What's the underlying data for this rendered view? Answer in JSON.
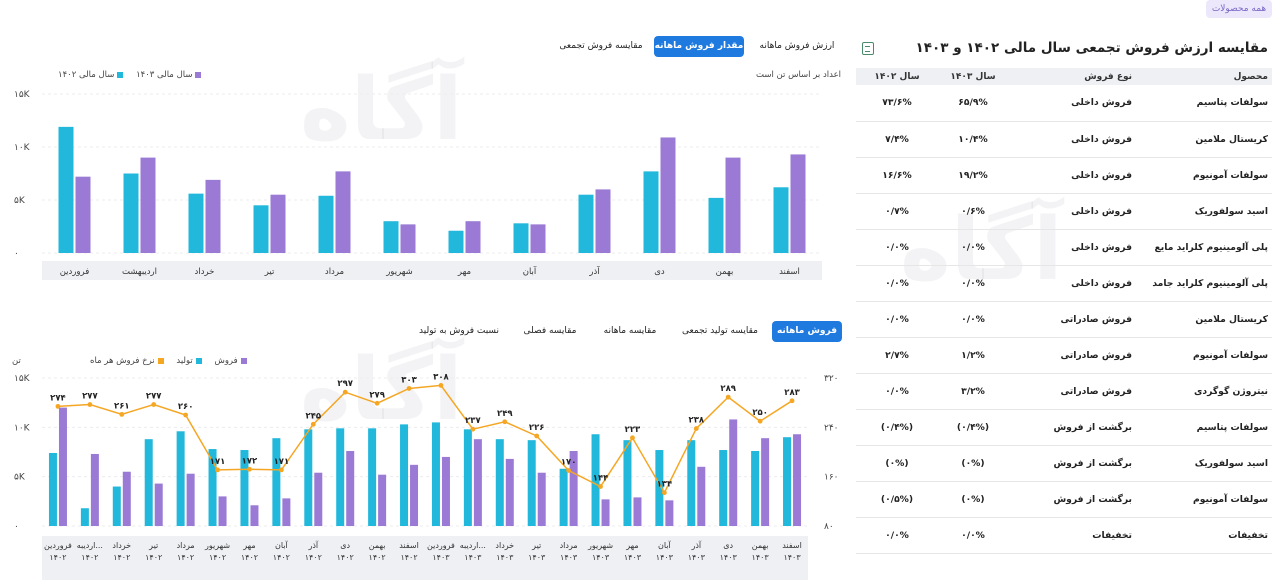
{
  "all_products_button": "همه محصولات",
  "table": {
    "title": "مقایسه ارزش فروش تجمعی سال مالی ۱۴۰۲ و ۱۴۰۳",
    "excel_icon": "excel-export-icon",
    "headers": [
      "محصول",
      "نوع فروش",
      "سال ۱۴۰۳",
      "سال ۱۴۰۲"
    ],
    "rows": [
      [
        "سولفات پتاسیم",
        "فروش داخلی",
        "۶۵/۹%",
        "۷۳/۶%"
      ],
      [
        "کریستال ملامین",
        "فروش داخلی",
        "۱۰/۴%",
        "۷/۴%"
      ],
      [
        "سولفات آمونیوم",
        "فروش داخلی",
        "۱۹/۲%",
        "۱۶/۶%"
      ],
      [
        "اسید سولفوریک",
        "فروش داخلی",
        "۰/۶%",
        "۰/۷%"
      ],
      [
        "پلی آلومینیوم کلراید مایع",
        "فروش داخلی",
        "۰/۰%",
        "۰/۰%"
      ],
      [
        "پلی آلومینیوم کلراید جامد",
        "فروش داخلی",
        "۰/۰%",
        "۰/۰%"
      ],
      [
        "کریستال ملامین",
        "فروش صادراتی",
        "۰/۰%",
        "۰/۰%"
      ],
      [
        "سولفات آمونیوم",
        "فروش صادراتی",
        "۱/۲%",
        "۲/۷%"
      ],
      [
        "نیتروژن گوگردی",
        "فروش صادراتی",
        "۳/۲%",
        "۰/۰%"
      ],
      [
        "سولفات پتاسیم",
        "برگشت از فروش",
        "(۰/۴%)",
        "(۰/۴%)"
      ],
      [
        "اسید سولفوریک",
        "برگشت از فروش",
        "(۰%)",
        "(۰%)"
      ],
      [
        "سولفات آمونیوم",
        "برگشت از فروش",
        "(۰%)",
        "(۰/۵%)"
      ],
      [
        "تخفیفات",
        "تخفیفات",
        "۰/۰%",
        "۰/۰%"
      ]
    ]
  },
  "top_tabs": [
    "مقایسه فروش تجمعی",
    "مقدار فروش ماهانه",
    "ارزش فروش ماهانه"
  ],
  "top_note": "اعداد بر اساس تن است",
  "top_legend": [
    "سال مالی ۱۴۰۳",
    "سال مالی ۱۴۰۲"
  ],
  "bottom_tabs": [
    "فروش ماهانه",
    "مقایسه تولید تجمعی",
    "مقایسه ماهانه",
    "مقایسه فصلی",
    "نسبت فروش به تولید"
  ],
  "bottom_legend": [
    "فروش",
    "تولید",
    "نرخ فروش هر ماه"
  ],
  "bottom_unit": "تن",
  "colors": {
    "production": "#22b8dc",
    "sales": "#9a7ad4",
    "rate": "#f5a623",
    "accent": "#1f7ae0"
  },
  "watermark_text": "آگاه",
  "chart_data": [
    {
      "type": "bar",
      "categories": [
        "اسفند",
        "بهمن",
        "دی",
        "آذر",
        "آبان",
        "مهر",
        "شهریور",
        "مرداد",
        "تیر",
        "خرداد",
        "اردیبهشت",
        "فروردین"
      ],
      "series": [
        {
          "name": "سال مالی ۱۴۰۲",
          "color": "#22b8dc",
          "values": [
            6200,
            5200,
            7700,
            5500,
            2800,
            2100,
            3000,
            5400,
            4500,
            5600,
            7500,
            11900
          ]
        },
        {
          "name": "سال مالی ۱۴۰۳",
          "color": "#9a7ad4",
          "values": [
            9300,
            9000,
            10900,
            6000,
            2700,
            3000,
            2700,
            7700,
            5500,
            6900,
            9000,
            7200
          ]
        }
      ],
      "ylim": [
        0,
        15000
      ],
      "yticks": [
        "۰",
        "۵K",
        "۱۰K",
        "۱۵K"
      ],
      "legend": "top-left"
    },
    {
      "type": "bar+line",
      "categories": [
        [
          "فروردین",
          "۱۴۰۲"
        ],
        [
          "اردیبه...",
          "۱۴۰۲"
        ],
        [
          "خرداد",
          "۱۴۰۲"
        ],
        [
          "تیر",
          "۱۴۰۲"
        ],
        [
          "مرداد",
          "۱۴۰۲"
        ],
        [
          "شهریور",
          "۱۴۰۲"
        ],
        [
          "مهر",
          "۱۴۰۲"
        ],
        [
          "آبان",
          "۱۴۰۲"
        ],
        [
          "آذر",
          "۱۴۰۲"
        ],
        [
          "دی",
          "۱۴۰۲"
        ],
        [
          "بهمن",
          "۱۴۰۲"
        ],
        [
          "اسفند",
          "۱۴۰۲"
        ],
        [
          "فروردین",
          "۱۴۰۳"
        ],
        [
          "اردیبه...",
          "۱۴۰۳"
        ],
        [
          "خرداد",
          "۱۴۰۳"
        ],
        [
          "تیر",
          "۱۴۰۳"
        ],
        [
          "مرداد",
          "۱۴۰۳"
        ],
        [
          "شهریور",
          "۱۴۰۳"
        ],
        [
          "مهر",
          "۱۴۰۳"
        ],
        [
          "آبان",
          "۱۴۰۳"
        ],
        [
          "آذر",
          "۱۴۰۳"
        ],
        [
          "دی",
          "۱۴۰۳"
        ],
        [
          "بهمن",
          "۱۴۰۳"
        ],
        [
          "اسفند",
          "۱۴۰۳"
        ]
      ],
      "series": [
        {
          "name": "تولید",
          "color": "#22b8dc",
          "values": [
            7400,
            1800,
            4000,
            8800,
            9600,
            7800,
            7700,
            8900,
            9800,
            9900,
            9900,
            10300,
            10500,
            9800,
            8800,
            8700,
            5800,
            9300,
            8700,
            7700,
            8700,
            7700,
            7600,
            9000
          ]
        },
        {
          "name": "فروش",
          "color": "#9a7ad4",
          "values": [
            12000,
            7300,
            5500,
            4300,
            5300,
            3000,
            2100,
            2800,
            5400,
            7600,
            5200,
            6200,
            7000,
            8800,
            6800,
            5400,
            7600,
            2700,
            2900,
            2600,
            6000,
            10800,
            8900,
            9300
          ]
        },
        {
          "name": "نرخ فروش هر ماه",
          "color": "#f5a623",
          "axis": "right",
          "values": [
            274,
            277,
            261,
            277,
            260,
            171,
            172,
            171,
            245,
            297,
            279,
            303,
            308,
            237,
            249,
            226,
            170,
            144,
            223,
            134,
            238,
            289,
            250,
            283
          ]
        }
      ],
      "rate_labels": [
        "۲۷۴",
        "۲۷۷",
        "۲۶۱",
        "۲۷۷",
        "۲۶۰",
        "۱۷۱",
        "۱۷۲",
        "۱۷۱",
        "۲۴۵",
        "۲۹۷",
        "۲۷۹",
        "۳۰۳",
        "۳۰۸",
        "۲۳۷",
        "۲۴۹",
        "۲۲۶",
        "۱۷۰",
        "۱۴۴",
        "۲۲۳",
        "۱۳۴",
        "۲۳۸",
        "۲۸۹",
        "۲۵۰",
        "۲۸۳"
      ],
      "ylim": [
        0,
        15000
      ],
      "yticks": [
        "۰",
        "۵K",
        "۱۰K",
        "۱۵K"
      ],
      "y2lim": [
        80,
        320
      ],
      "y2ticks": [
        "۸۰",
        "۱۶۰",
        "۲۴۰",
        "۳۲۰"
      ],
      "legend": "top-left"
    }
  ]
}
